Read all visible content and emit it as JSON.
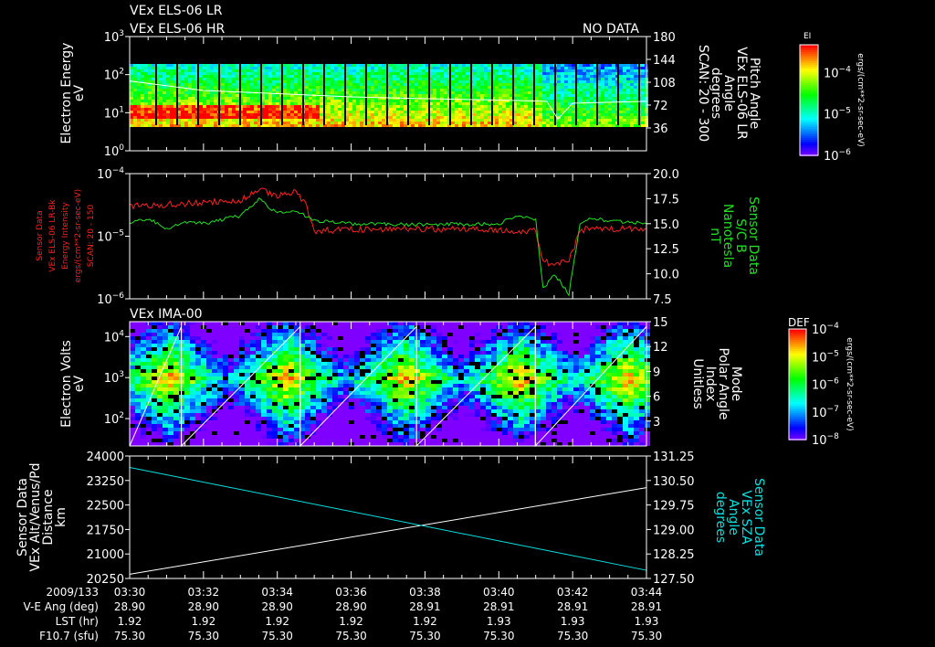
{
  "header": {
    "line1": "VEx ELS-06 LR",
    "line2": "VEx ELS-06 HR",
    "status": "NO DATA"
  },
  "colors": {
    "red": "#ff2020",
    "green": "#20e020",
    "cyan": "#00e0e0",
    "white": "#ffffff"
  },
  "chart_data": [
    {
      "type": "heatmap",
      "title": "VEx ELS-06 LR / HR",
      "ylabel": [
        "Electron Energy",
        "eV"
      ],
      "y_ticks": [
        "10^0",
        "10^1",
        "10^2",
        "10^3"
      ],
      "ylim": [
        1,
        1000
      ],
      "yscale": "log",
      "right_label": [
        "Pitch Angle",
        "VEx ELS-06 LR",
        "Angle",
        "degrees",
        "SCAN: 20 - 300"
      ],
      "right_ticks": [
        "36",
        "72",
        "108",
        "144",
        "180"
      ],
      "right_lim": [
        0,
        180
      ],
      "overlay_series": {
        "name": "Pitch Angle",
        "x_min": [
          0,
          2,
          4,
          6,
          8,
          10,
          11.3,
          11.6,
          12,
          14
        ],
        "y": [
          110,
          95,
          90,
          85,
          82,
          80,
          78,
          50,
          75,
          78
        ]
      },
      "colorbar": {
        "label": "EI",
        "ticks": [
          "10^-4",
          "10^-5",
          "10^-6"
        ],
        "units": "ergs/(cm**2-sr-sec-eV)"
      }
    },
    {
      "type": "line",
      "left_label": [
        "Sensor Data",
        "VEx ELS-06 LR-Bk",
        "Energy Intensity",
        "ergs/(cm**2-sr-sec-eV)",
        "SCAN: 20 - 150"
      ],
      "left_ticks": [
        "10^-4",
        "10^-5",
        "10^-6"
      ],
      "ylim": [
        1e-06,
        0.0001
      ],
      "yscale": "log",
      "right_label": [
        "Sensor Data",
        "S/C B",
        "Nanotesla",
        "nT"
      ],
      "right_ticks": [
        "7.5",
        "10.0",
        "12.5",
        "15.0",
        "17.5",
        "20.0"
      ],
      "right_lim": [
        7.5,
        20
      ],
      "series": [
        {
          "name": "Energy Intensity",
          "color": "red",
          "axis": "left",
          "x_min": [
            0,
            1,
            2,
            3,
            3.5,
            4,
            4.5,
            4.8,
            5,
            6,
            8,
            10,
            11,
            11.2,
            11.5,
            11.9,
            12.2,
            12.5,
            13,
            14
          ],
          "y": [
            3e-05,
            3.2e-05,
            3.5e-05,
            3.8e-05,
            5.5e-05,
            4.5e-05,
            5e-05,
            3e-05,
            1.2e-05,
            1.3e-05,
            1.3e-05,
            1.25e-05,
            1.2e-05,
            4e-06,
            3.5e-06,
            4e-06,
            1.2e-05,
            1.4e-05,
            1.3e-05,
            1.3e-05
          ]
        },
        {
          "name": "S/C B",
          "color": "green",
          "axis": "right",
          "x_min": [
            0,
            0.5,
            1,
            1.5,
            2,
            3,
            3.5,
            4,
            4.5,
            5,
            6,
            8,
            10,
            10.5,
            11,
            11.2,
            11.5,
            11.9,
            12.2,
            12.5,
            13,
            14
          ],
          "y": [
            15,
            15.5,
            14.5,
            15.2,
            15,
            15.8,
            17.5,
            16,
            16.3,
            15.3,
            15,
            14.9,
            15,
            15.8,
            15.5,
            8.5,
            10,
            8,
            15,
            15.5,
            15.3,
            15
          ]
        }
      ]
    },
    {
      "type": "heatmap",
      "title": "VEx IMA-00",
      "ylabel": [
        "Electron Volts",
        "eV"
      ],
      "y_ticks": [
        "10^2",
        "10^3",
        "10^4"
      ],
      "right_label": [
        "Mode",
        "Polar Angle",
        "Index",
        "Unitless"
      ],
      "right_ticks": [
        "3",
        "6",
        "9",
        "12",
        "15"
      ],
      "right_lim": [
        0,
        15
      ],
      "colorbar": {
        "label": "DEF",
        "ticks": [
          "10^-4",
          "10^-5",
          "10^-6",
          "10^-7",
          "10^-8"
        ],
        "units": "ergs/(cm**2-sr-sec-eV)"
      }
    },
    {
      "type": "line",
      "left_label": [
        "Sensor Data",
        "VEx Alt/Venus/Pd",
        "Distance",
        "km"
      ],
      "left_ticks": [
        "20250",
        "21000",
        "21750",
        "22500",
        "23250",
        "24000"
      ],
      "ylim": [
        20250,
        24000
      ],
      "right_label": [
        "Sensor Data",
        "VEx SZA",
        "Angle",
        "degrees"
      ],
      "right_ticks": [
        "127.50",
        "128.25",
        "129.00",
        "129.75",
        "130.50",
        "131.25"
      ],
      "right_lim": [
        127.5,
        131.25
      ],
      "series": [
        {
          "name": "Distance",
          "color": "white",
          "axis": "left",
          "x_min": [
            0,
            14
          ],
          "y": [
            20380,
            23030
          ]
        },
        {
          "name": "SZA",
          "color": "cyan",
          "axis": "right",
          "x_min": [
            0,
            14
          ],
          "y": [
            130.9,
            127.75
          ]
        }
      ]
    }
  ],
  "footer": {
    "row_labels": [
      "2009/133",
      "V-E Ang (deg)",
      "LST (hr)",
      "F10.7 (sfu)"
    ],
    "times": [
      "03:30",
      "03:32",
      "03:34",
      "03:36",
      "03:38",
      "03:40",
      "03:42",
      "03:44"
    ],
    "ve_ang": [
      "28.90",
      "28.90",
      "28.90",
      "28.90",
      "28.91",
      "28.91",
      "28.91",
      "28.91"
    ],
    "lst": [
      "1.92",
      "1.92",
      "1.92",
      "1.92",
      "1.92",
      "1.93",
      "1.93",
      "1.93"
    ],
    "f107": [
      "75.30",
      "75.30",
      "75.30",
      "75.30",
      "75.30",
      "75.30",
      "75.30",
      "75.30"
    ]
  }
}
